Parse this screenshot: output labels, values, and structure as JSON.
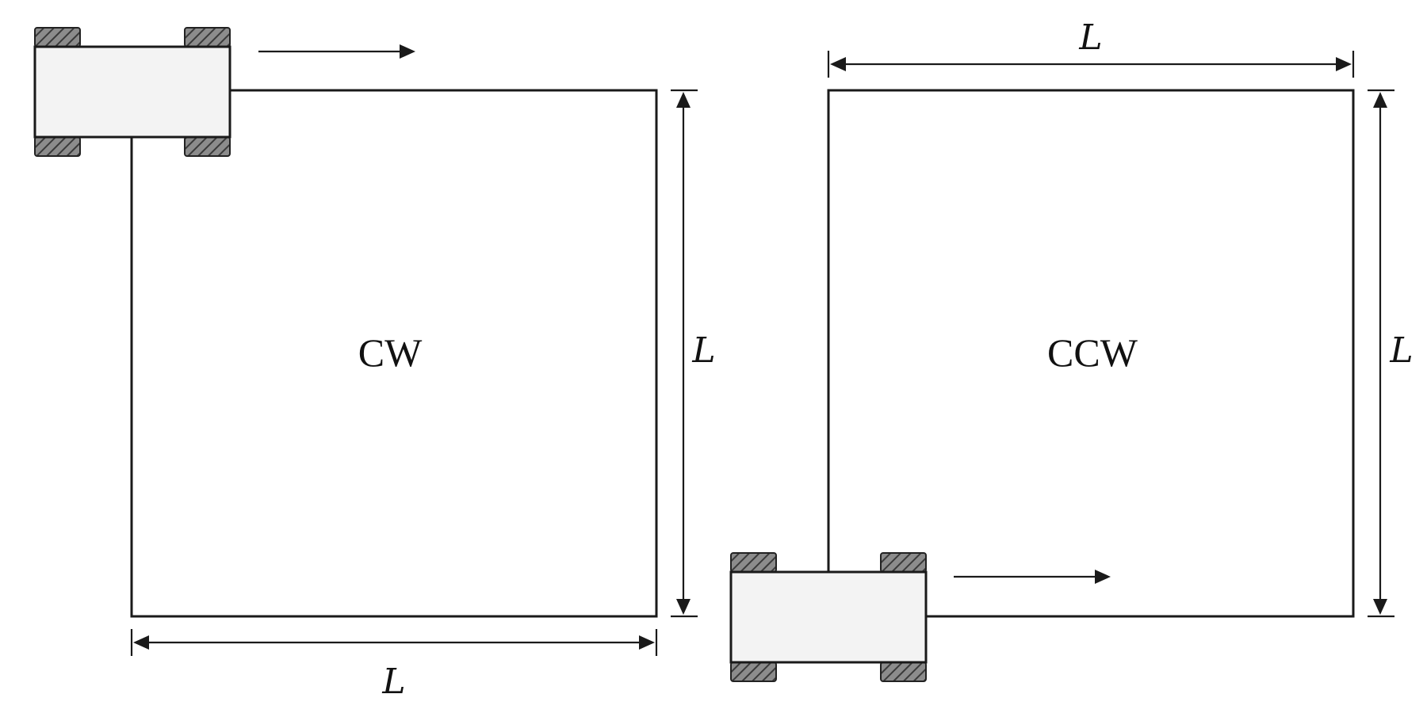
{
  "panels": [
    {
      "direction_label": "CW",
      "side_length_label_right": "L",
      "side_length_label_bottom": "L",
      "robot_icon": "robot-car-icon",
      "motion_arrow_icon": "arrow-right-icon"
    },
    {
      "direction_label": "CCW",
      "side_length_label_top": "L",
      "side_length_label_right": "L",
      "robot_icon": "robot-car-icon",
      "motion_arrow_icon": "arrow-right-icon"
    }
  ],
  "colors": {
    "stroke": "#1a1a1a",
    "robot_body": "#f3f3f3",
    "wheel_fill": "#8c8c8c",
    "wheel_hatch": "#3a3a3a"
  }
}
